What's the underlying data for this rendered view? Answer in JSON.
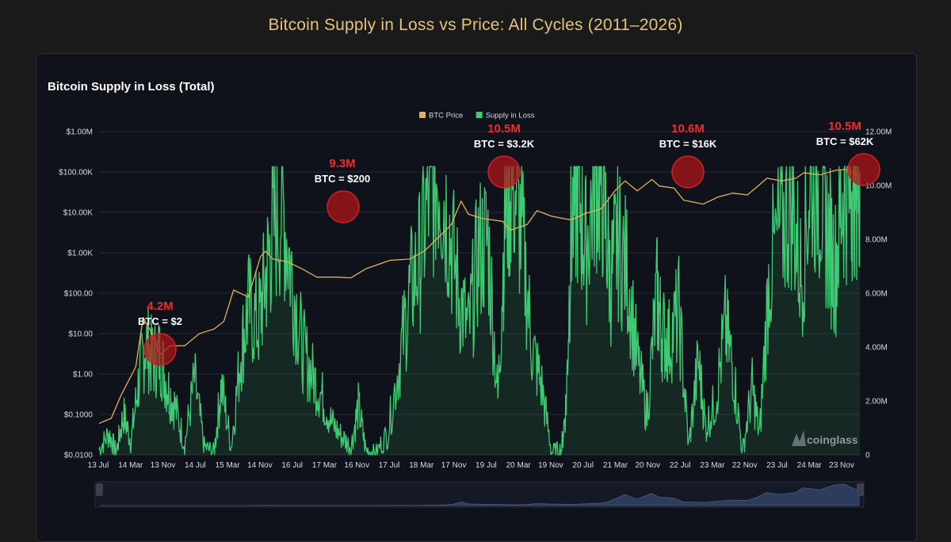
{
  "page_title": "Bitcoin Supply in Loss vs Price: All Cycles (2011–2026)",
  "panel_title": "Bitcoin Supply in Loss (Total)",
  "watermark": "coinglass",
  "colors": {
    "price": "#e2b155",
    "supply": "#3ecb73",
    "annotation_circle": "#b3141a",
    "annotation_text": "#ef2b2b",
    "navigator_fill": "#2d3b5c"
  },
  "chart_data": {
    "type": "line",
    "legend": [
      "BTC Price",
      "Supply in Loss"
    ],
    "legend_position": "top-center",
    "x_tick_labels": [
      "13 Jul",
      "14 Mar",
      "13 Nov",
      "14 Jul",
      "15 Mar",
      "14 Nov",
      "16 Jul",
      "17 Mar",
      "16 Nov",
      "17 Jul",
      "18 Mar",
      "17 Nov",
      "19 Jul",
      "20 Mar",
      "19 Nov",
      "20 Jul",
      "21 Mar",
      "20 Nov",
      "22 Jul",
      "23 Mar",
      "22 Nov",
      "23 Jul",
      "24 Mar",
      "23 Nov"
    ],
    "y_left_ticks": [
      "$1.00M",
      "$100.00K",
      "$10.00K",
      "$1.00K",
      "$100.00",
      "$10.00",
      "$1.00",
      "$0.1000",
      "$0.0100"
    ],
    "y_left_scale": "log",
    "y_left_range": [
      0.01,
      1000000
    ],
    "y_right_ticks": [
      "12.00M",
      "10.00M",
      "8.00M",
      "6.00M",
      "4.00M",
      "2.00M",
      "0"
    ],
    "y_right_range": [
      0,
      12000000
    ],
    "series": [
      {
        "name": "BTC Price",
        "axis": "left",
        "x": [
          2010.55,
          2010.8,
          2011.0,
          2011.3,
          2011.45,
          2011.6,
          2011.8,
          2012.0,
          2012.3,
          2012.6,
          2012.9,
          2013.1,
          2013.3,
          2013.6,
          2013.85,
          2013.95,
          2014.1,
          2014.4,
          2014.7,
          2015.0,
          2015.4,
          2015.7,
          2016.0,
          2016.5,
          2016.9,
          2017.2,
          2017.5,
          2017.75,
          2017.95,
          2018.1,
          2018.4,
          2018.8,
          2018.95,
          2019.3,
          2019.5,
          2019.8,
          2020.0,
          2020.2,
          2020.5,
          2020.8,
          2020.95,
          2021.1,
          2021.3,
          2021.55,
          2021.85,
          2022.0,
          2022.3,
          2022.5,
          2022.9,
          2023.2,
          2023.5,
          2023.8,
          2024.0,
          2024.2,
          2024.5,
          2024.8,
          2024.95,
          2025.3,
          2025.6,
          2025.8,
          2026.0,
          2026.1
        ],
        "y": [
          0.06,
          0.08,
          0.3,
          1.5,
          25,
          12,
          3,
          5,
          5,
          10,
          13,
          20,
          120,
          80,
          800,
          1100,
          700,
          600,
          400,
          250,
          250,
          240,
          400,
          650,
          700,
          1100,
          2500,
          5000,
          19000,
          9000,
          7000,
          6000,
          3600,
          5000,
          11000,
          8000,
          7200,
          6500,
          9500,
          12000,
          20000,
          35000,
          60000,
          34000,
          65000,
          45000,
          40000,
          20000,
          16000,
          24000,
          30000,
          27000,
          43000,
          70000,
          60000,
          70000,
          95000,
          85000,
          110000,
          115000,
          90000,
          78000
        ]
      },
      {
        "name": "Supply in Loss",
        "axis": "right",
        "x": [
          2010.55,
          2010.75,
          2010.9,
          2011.05,
          2011.2,
          2011.35,
          2011.5,
          2011.65,
          2011.8,
          2011.95,
          2012.1,
          2012.3,
          2012.5,
          2012.7,
          2012.9,
          2013.05,
          2013.25,
          2013.45,
          2013.6,
          2013.8,
          2013.95,
          2014.1,
          2014.3,
          2014.5,
          2014.7,
          2014.9,
          2015.1,
          2015.3,
          2015.5,
          2015.7,
          2015.85,
          2016.0,
          2016.2,
          2016.45,
          2016.7,
          2016.9,
          2017.1,
          2017.3,
          2017.5,
          2017.7,
          2017.9,
          2018.1,
          2018.3,
          2018.5,
          2018.7,
          2018.85,
          2019.0,
          2019.2,
          2019.4,
          2019.6,
          2019.8,
          2020.0,
          2020.1,
          2020.2,
          2020.35,
          2020.5,
          2020.7,
          2020.85,
          2021.0,
          2021.15,
          2021.35,
          2021.55,
          2021.75,
          2021.95,
          2022.05,
          2022.2,
          2022.4,
          2022.6,
          2022.8,
          2022.95,
          2023.15,
          2023.35,
          2023.5,
          2023.7,
          2023.9,
          2024.05,
          2024.25,
          2024.5,
          2024.7,
          2024.9,
          2025.1,
          2025.3,
          2025.45,
          2025.6,
          2025.75,
          2025.9,
          2026.0,
          2026.1
        ],
        "y": [
          200000,
          800000,
          100000,
          1500000,
          500000,
          2600000,
          4200000,
          3500000,
          3700000,
          2500000,
          1800000,
          400000,
          2800000,
          300000,
          100000,
          2600000,
          300000,
          3800000,
          5500000,
          4800000,
          6500000,
          8300000,
          9300000,
          6500000,
          4000000,
          3000000,
          2200000,
          1200000,
          700000,
          300000,
          1800000,
          200000,
          50000,
          800000,
          3600000,
          6000000,
          7200000,
          9800000,
          10500000,
          8500000,
          6000000,
          4500000,
          7500000,
          8000000,
          2000000,
          9000000,
          10400000,
          8000000,
          4000000,
          2500000,
          100000,
          200000,
          2000000,
          8500000,
          9800000,
          7600000,
          10600000,
          9800000,
          6400000,
          8000000,
          6800000,
          3500000,
          1500000,
          6000000,
          4600000,
          4200000,
          5300000,
          300000,
          3500000,
          1000000,
          2000000,
          4800000,
          3300000,
          100000,
          2500000,
          700000,
          6800000,
          8500000,
          9600000,
          6600000,
          10500000,
          9800000,
          8100000,
          7000000,
          9800000,
          10100000,
          10400000,
          10500000
        ]
      }
    ],
    "annotations": [
      {
        "loss": "4.2M",
        "price": "BTC = $2"
      },
      {
        "loss": "9.3M",
        "price": "BTC = $200"
      },
      {
        "loss": "10.5M",
        "price": "BTC = $3.2K"
      },
      {
        "loss": "10.6M",
        "price": "BTC = $16K"
      },
      {
        "loss": "10.5M",
        "price": "BTC = $62K"
      }
    ]
  }
}
